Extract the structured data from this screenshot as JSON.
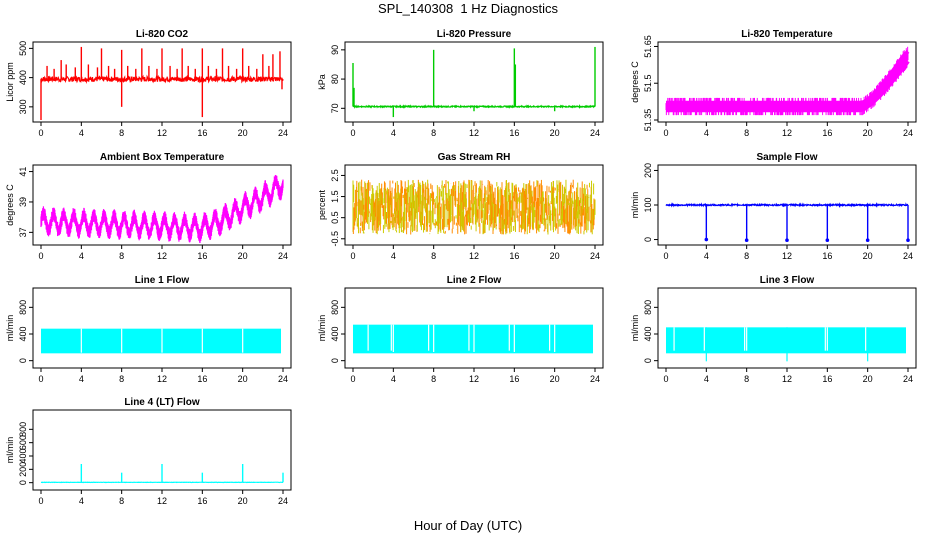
{
  "title": "SPL_140308  1 Hz Diagnostics",
  "xlabel": "Hour of Day (UTC)",
  "chart_data": [
    {
      "type": "line",
      "title": "Li-820 CO2",
      "ylabel": "Licor ppm",
      "xlim": [
        0,
        24
      ],
      "ylim": [
        255,
        515
      ],
      "yticks": [
        300,
        400,
        500
      ],
      "xticks": [
        0,
        4,
        8,
        12,
        16,
        20,
        24
      ],
      "color": "#ff0000",
      "pattern": "spikes",
      "base": 395,
      "noise": 9,
      "spikes": [
        {
          "x": 0.0,
          "y": 255
        },
        {
          "x": 0.6,
          "y": 440
        },
        {
          "x": 1.3,
          "y": 430
        },
        {
          "x": 2.0,
          "y": 460
        },
        {
          "x": 2.5,
          "y": 445
        },
        {
          "x": 3.4,
          "y": 435
        },
        {
          "x": 4.0,
          "y": 505
        },
        {
          "x": 4.7,
          "y": 445
        },
        {
          "x": 5.6,
          "y": 435
        },
        {
          "x": 6.0,
          "y": 500
        },
        {
          "x": 6.7,
          "y": 440
        },
        {
          "x": 7.3,
          "y": 430
        },
        {
          "x": 8.0,
          "y": 495
        },
        {
          "x": 8.0,
          "y": 300
        },
        {
          "x": 8.6,
          "y": 440
        },
        {
          "x": 9.4,
          "y": 430
        },
        {
          "x": 10.0,
          "y": 500
        },
        {
          "x": 10.7,
          "y": 440
        },
        {
          "x": 11.5,
          "y": 430
        },
        {
          "x": 12.0,
          "y": 500
        },
        {
          "x": 12.8,
          "y": 440
        },
        {
          "x": 13.5,
          "y": 430
        },
        {
          "x": 14.0,
          "y": 500
        },
        {
          "x": 14.6,
          "y": 440
        },
        {
          "x": 15.3,
          "y": 430
        },
        {
          "x": 16.0,
          "y": 500
        },
        {
          "x": 16.0,
          "y": 265
        },
        {
          "x": 16.6,
          "y": 440
        },
        {
          "x": 17.4,
          "y": 430
        },
        {
          "x": 18.0,
          "y": 500
        },
        {
          "x": 18.6,
          "y": 440
        },
        {
          "x": 19.4,
          "y": 430
        },
        {
          "x": 20.0,
          "y": 500
        },
        {
          "x": 20.6,
          "y": 440
        },
        {
          "x": 21.4,
          "y": 430
        },
        {
          "x": 22.0,
          "y": 480
        },
        {
          "x": 22.6,
          "y": 440
        },
        {
          "x": 23.0,
          "y": 480
        },
        {
          "x": 23.7,
          "y": 490
        },
        {
          "x": 23.9,
          "y": 360
        }
      ]
    },
    {
      "type": "line",
      "title": "Li-820 Pressure",
      "ylabel": "kPa",
      "xlim": [
        0,
        24
      ],
      "ylim": [
        66,
        92
      ],
      "yticks": [
        70,
        80,
        90
      ],
      "xticks": [
        0,
        4,
        8,
        12,
        16,
        20,
        24
      ],
      "color": "#00cc00",
      "pattern": "spikes",
      "base": 70.6,
      "noise": 0.2,
      "spikes": [
        {
          "x": 0.0,
          "y": 85.5
        },
        {
          "x": 0.1,
          "y": 77
        },
        {
          "x": 4.0,
          "y": 67
        },
        {
          "x": 8.0,
          "y": 90
        },
        {
          "x": 8.1,
          "y": 71
        },
        {
          "x": 12.0,
          "y": 69
        },
        {
          "x": 16.0,
          "y": 90.5
        },
        {
          "x": 16.1,
          "y": 85
        },
        {
          "x": 20.0,
          "y": 69
        },
        {
          "x": 24.0,
          "y": 91
        }
      ]
    },
    {
      "type": "line",
      "title": "Li-820 Temperature",
      "ylabel": "degrees C",
      "xlim": [
        0,
        24
      ],
      "ylim": [
        51.35,
        51.66
      ],
      "yticks": [
        51.35,
        51.5,
        51.65
      ],
      "xticks": [
        0,
        4,
        8,
        12,
        16,
        20,
        24
      ],
      "color": "#ff00ff",
      "pattern": "band",
      "band": [
        {
          "x": 0,
          "lo": 51.37,
          "hi": 51.44
        },
        {
          "x": 19.5,
          "lo": 51.37,
          "hi": 51.44
        },
        {
          "x": 20.5,
          "lo": 51.4,
          "hi": 51.47
        },
        {
          "x": 21.5,
          "lo": 51.44,
          "hi": 51.52
        },
        {
          "x": 22.5,
          "lo": 51.49,
          "hi": 51.57
        },
        {
          "x": 23.5,
          "lo": 51.54,
          "hi": 51.63
        },
        {
          "x": 24,
          "lo": 51.57,
          "hi": 51.65
        }
      ]
    },
    {
      "type": "line",
      "title": "Ambient Box Temperature",
      "ylabel": "degrees C",
      "xlim": [
        0,
        24
      ],
      "ylim": [
        36.3,
        41.3
      ],
      "yticks": [
        37,
        39,
        41
      ],
      "xticks": [
        0,
        4,
        8,
        12,
        16,
        20,
        24
      ],
      "color": "#ff00ff",
      "pattern": "oscband",
      "period": 1.0,
      "amp": 0.55,
      "width": 0.8,
      "trend": [
        {
          "x": 0,
          "y": 37.7
        },
        {
          "x": 4,
          "y": 37.6
        },
        {
          "x": 8,
          "y": 37.5
        },
        {
          "x": 12,
          "y": 37.4
        },
        {
          "x": 16,
          "y": 37.3
        },
        {
          "x": 18,
          "y": 37.8
        },
        {
          "x": 20,
          "y": 38.6
        },
        {
          "x": 22,
          "y": 39.3
        },
        {
          "x": 24,
          "y": 40.2
        }
      ]
    },
    {
      "type": "line",
      "title": "Gas Stream RH",
      "ylabel": "percent",
      "xlim": [
        0,
        24
      ],
      "ylim": [
        -0.7,
        2.9
      ],
      "yticks": [
        -0.5,
        0.5,
        1.5,
        2.5
      ],
      "xticks": [
        0,
        4,
        8,
        12,
        16,
        20,
        24
      ],
      "color": "#ff8c00",
      "pattern": "noiseband",
      "center": 1.0,
      "amp": 1.3,
      "overlay": "#cccc00"
    },
    {
      "type": "line",
      "title": "Sample Flow",
      "ylabel": "ml/min",
      "xlim": [
        0,
        24
      ],
      "ylim": [
        -10,
        210
      ],
      "yticks": [
        0,
        100,
        200
      ],
      "xticks": [
        0,
        4,
        8,
        12,
        16,
        20,
        24
      ],
      "color": "#0000ff",
      "pattern": "dips",
      "base": 100,
      "noise": 2,
      "dips": [
        {
          "x": 4.0,
          "y": 0
        },
        {
          "x": 8.0,
          "y": -2
        },
        {
          "x": 12.0,
          "y": -2
        },
        {
          "x": 16.0,
          "y": -2
        },
        {
          "x": 20.0,
          "y": -2
        },
        {
          "x": 24.0,
          "y": -2
        }
      ]
    },
    {
      "type": "line",
      "title": "Line 1 Flow",
      "ylabel": "ml/min",
      "xlim": [
        0,
        24
      ],
      "ylim": [
        -80,
        1060
      ],
      "yticks": [
        0,
        400,
        800
      ],
      "xticks": [
        0,
        4,
        8,
        12,
        16,
        20,
        24
      ],
      "color": "#00ffff",
      "pattern": "block",
      "lo": 110,
      "hi": 480,
      "gaps": [
        {
          "x": 4.0,
          "y": 120
        },
        {
          "x": 8.0,
          "y": 120
        },
        {
          "x": 12.0,
          "y": 120
        },
        {
          "x": 16.0,
          "y": 120
        },
        {
          "x": 20.0,
          "y": 120
        },
        {
          "x": 24.0,
          "y": 120
        }
      ]
    },
    {
      "type": "line",
      "title": "Line 2 Flow",
      "ylabel": "ml/min",
      "xlim": [
        0,
        24
      ],
      "ylim": [
        -80,
        1060
      ],
      "yticks": [
        0,
        400,
        800
      ],
      "xticks": [
        0,
        4,
        8,
        12,
        16,
        20,
        24
      ],
      "color": "#00ffff",
      "pattern": "block",
      "lo": 110,
      "hi": 540,
      "gaps": [
        {
          "x": 1.5,
          "y": 150
        },
        {
          "x": 3.8,
          "y": 150
        },
        {
          "x": 4.0,
          "y": 130
        },
        {
          "x": 7.5,
          "y": 150
        },
        {
          "x": 8.0,
          "y": 130
        },
        {
          "x": 11.5,
          "y": 150
        },
        {
          "x": 12.0,
          "y": 130
        },
        {
          "x": 15.5,
          "y": 150
        },
        {
          "x": 16.0,
          "y": 130
        },
        {
          "x": 19.5,
          "y": 150
        },
        {
          "x": 20.0,
          "y": 130
        },
        {
          "x": 24.0,
          "y": 400
        }
      ]
    },
    {
      "type": "line",
      "title": "Line 3 Flow",
      "ylabel": "ml/min",
      "xlim": [
        0,
        24
      ],
      "ylim": [
        -80,
        1060
      ],
      "yticks": [
        0,
        400,
        800
      ],
      "xticks": [
        0,
        4,
        8,
        12,
        16,
        20,
        24
      ],
      "color": "#00ffff",
      "pattern": "block",
      "lo": 110,
      "hi": 500,
      "gaps": [
        {
          "x": 0.8,
          "y": 150
        },
        {
          "x": 3.8,
          "y": 150
        },
        {
          "x": 4.0,
          "y": -10
        },
        {
          "x": 7.8,
          "y": 150
        },
        {
          "x": 8.0,
          "y": 150
        },
        {
          "x": 12.0,
          "y": -10
        },
        {
          "x": 15.8,
          "y": 150
        },
        {
          "x": 16.0,
          "y": 150
        },
        {
          "x": 19.8,
          "y": 150
        },
        {
          "x": 20.0,
          "y": -10
        },
        {
          "x": 24.0,
          "y": 400
        }
      ]
    },
    {
      "type": "line",
      "title": "Line 4 (LT) Flow",
      "ylabel": "ml/min",
      "xlim": [
        0,
        24
      ],
      "ylim": [
        -80,
        1060
      ],
      "yticks": [
        0,
        200,
        400,
        600,
        800
      ],
      "xticks": [
        0,
        4,
        8,
        12,
        16,
        20,
        24
      ],
      "color": "#00ffff",
      "pattern": "spikes",
      "base": 5,
      "noise": 2,
      "spikes": [
        {
          "x": 4.0,
          "y": 280
        },
        {
          "x": 8.0,
          "y": 150
        },
        {
          "x": 12.0,
          "y": 280
        },
        {
          "x": 16.0,
          "y": 150
        },
        {
          "x": 20.0,
          "y": 280
        },
        {
          "x": 24.0,
          "y": 150
        }
      ]
    }
  ]
}
